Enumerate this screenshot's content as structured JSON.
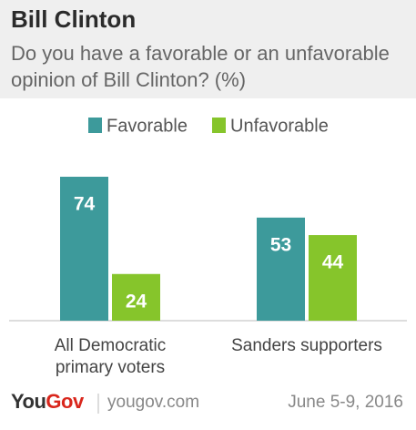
{
  "chart_data": {
    "type": "bar",
    "title": "Bill Clinton",
    "subtitle": "Do you have a favorable or an unfavorable opinion of Bill Clinton? (%)",
    "categories": [
      "All Democratic primary voters",
      "Sanders supporters"
    ],
    "series": [
      {
        "name": "Favorable",
        "color": "#3d9a9b",
        "values": [
          74,
          53
        ]
      },
      {
        "name": "Unfavorable",
        "color": "#86c52b",
        "values": [
          24,
          44
        ]
      }
    ]
  },
  "footer": {
    "brand_first": "You",
    "brand_second": "Gov",
    "site": "yougov.com",
    "date": "June 5-9, 2016"
  }
}
